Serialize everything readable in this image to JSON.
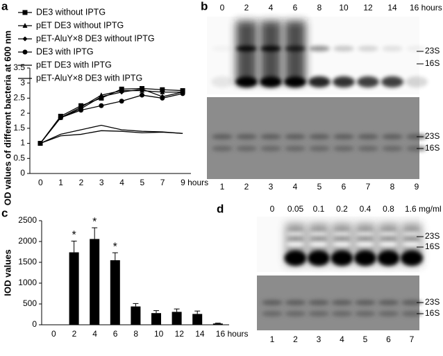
{
  "chart_data": [
    {
      "type": "line",
      "panel": "a",
      "categories": [
        "0",
        "1",
        "2",
        "3",
        "4",
        "5",
        "7",
        "9 hours"
      ],
      "ylim": [
        0,
        3.5
      ],
      "yticks": [
        0,
        0.5,
        1,
        1.5,
        2,
        2.5,
        3,
        3.5
      ],
      "y_label": "OD values of different bacteria at 600 nm",
      "series": [
        {
          "name": "DE3 without IPTG",
          "color": "#000000",
          "marker": "square",
          "values": [
            1,
            1.9,
            2.25,
            2.5,
            2.8,
            2.82,
            2.78,
            2.75
          ]
        },
        {
          "name": "pET DE3 without IPTG",
          "color": "#000000",
          "marker": "triangle",
          "values": [
            1,
            1.85,
            2.2,
            2.6,
            2.75,
            2.75,
            2.7,
            2.7
          ]
        },
        {
          "name": "pET-AluY×8 DE3 without IPTG",
          "color": "#000000",
          "marker": "diamond",
          "values": [
            1,
            1.85,
            2.15,
            2.55,
            2.7,
            2.8,
            2.55,
            2.7
          ]
        },
        {
          "name": "DE3 with IPTG",
          "color": "#000000",
          "marker": "circle",
          "values": [
            1,
            1.85,
            2.1,
            2.25,
            2.4,
            2.6,
            2.5,
            2.65
          ]
        },
        {
          "name": "pET DE3 with IPTG",
          "color": "#000000",
          "marker": "none",
          "values": [
            1,
            1.3,
            1.45,
            1.6,
            1.45,
            1.4,
            1.38,
            1.33
          ]
        },
        {
          "name": "pET-AluY×8 DE3 with IPTG",
          "color": "#000000",
          "marker": "none",
          "values": [
            1,
            1.25,
            1.3,
            1.42,
            1.4,
            1.35,
            1.37,
            1.33
          ]
        }
      ]
    },
    {
      "type": "bar",
      "panel": "c",
      "categories": [
        "0",
        "2",
        "4",
        "6",
        "8",
        "10",
        "12",
        "14",
        "16 hours"
      ],
      "values": [
        0,
        1740,
        2060,
        1550,
        440,
        280,
        310,
        260,
        30
      ],
      "errors": [
        null,
        270,
        270,
        180,
        70,
        60,
        70,
        70,
        10
      ],
      "annotations": [
        null,
        "*",
        "*",
        "*",
        null,
        null,
        null,
        null,
        null
      ],
      "color": "#000000",
      "ylim": [
        0,
        2500
      ],
      "yticks": [
        0,
        500,
        1000,
        1500,
        2000,
        2500
      ],
      "y_label": "IOD values"
    }
  ],
  "gels": [
    {
      "panel": "b",
      "lane_labels_top": [
        "0",
        "2",
        "4",
        "6",
        "8",
        "10",
        "12",
        "14",
        "16 hours"
      ],
      "lane_numbers": [
        "1",
        "2",
        "3",
        "4",
        "5",
        "6",
        "7",
        "8",
        "9"
      ],
      "top_markers": [
        "23S",
        "16S"
      ],
      "bottom_markers": [
        "23S",
        "16S"
      ]
    },
    {
      "panel": "d",
      "lane_labels_top": [
        "0",
        "0.05",
        "0.1",
        "0.2",
        "0.4",
        "0.8",
        "1.6 mg/ml"
      ],
      "lane_numbers": [
        "1",
        "2",
        "3",
        "4",
        "5",
        "6",
        "7"
      ],
      "top_markers": [
        "23S",
        "16S"
      ],
      "bottom_markers": [
        "23S",
        "16S"
      ]
    }
  ]
}
